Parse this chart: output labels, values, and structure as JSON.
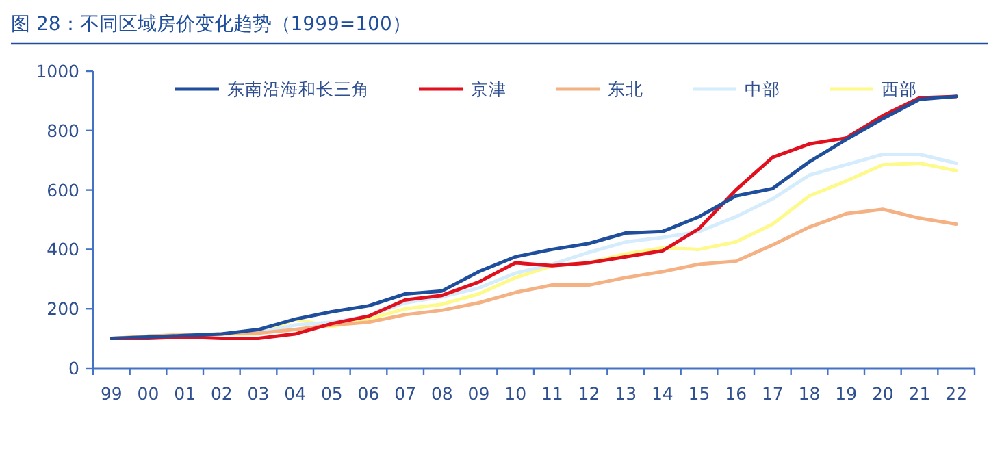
{
  "chart_data": {
    "type": "line",
    "title": "图 28：不同区域房价变化趋势（1999=100）",
    "categories": [
      "99",
      "00",
      "01",
      "02",
      "03",
      "04",
      "05",
      "06",
      "07",
      "08",
      "09",
      "10",
      "11",
      "12",
      "13",
      "14",
      "15",
      "16",
      "17",
      "18",
      "19",
      "20",
      "21",
      "22"
    ],
    "series": [
      {
        "name": "东南沿海和长三角",
        "color": "#1f4e9c",
        "values": [
          100,
          105,
          110,
          115,
          130,
          165,
          190,
          210,
          250,
          260,
          325,
          375,
          400,
          420,
          455,
          460,
          510,
          580,
          605,
          695,
          770,
          840,
          905,
          915
        ]
      },
      {
        "name": "京津",
        "color": "#e0101e",
        "values": [
          100,
          100,
          105,
          100,
          100,
          115,
          150,
          175,
          230,
          245,
          290,
          355,
          345,
          355,
          375,
          395,
          470,
          600,
          710,
          755,
          775,
          850,
          910,
          915
        ]
      },
      {
        "name": "东北",
        "color": "#f4b183",
        "values": [
          100,
          108,
          112,
          115,
          118,
          130,
          145,
          155,
          180,
          195,
          220,
          255,
          280,
          280,
          305,
          325,
          350,
          360,
          415,
          475,
          520,
          535,
          505,
          485
        ]
      },
      {
        "name": "中部",
        "color": "#d4ecfb",
        "values": [
          null,
          null,
          null,
          115,
          120,
          145,
          155,
          175,
          220,
          240,
          270,
          320,
          350,
          390,
          425,
          440,
          460,
          510,
          570,
          650,
          685,
          720,
          720,
          690
        ]
      },
      {
        "name": "西部",
        "color": "#fdf98a",
        "values": [
          100,
          108,
          112,
          115,
          115,
          165,
          140,
          165,
          200,
          215,
          250,
          305,
          345,
          355,
          385,
          405,
          400,
          425,
          485,
          580,
          630,
          685,
          690,
          665
        ]
      }
    ],
    "ylim": [
      0,
      1000
    ],
    "yticks": [
      0,
      200,
      400,
      600,
      800,
      1000
    ],
    "legend": "top"
  }
}
